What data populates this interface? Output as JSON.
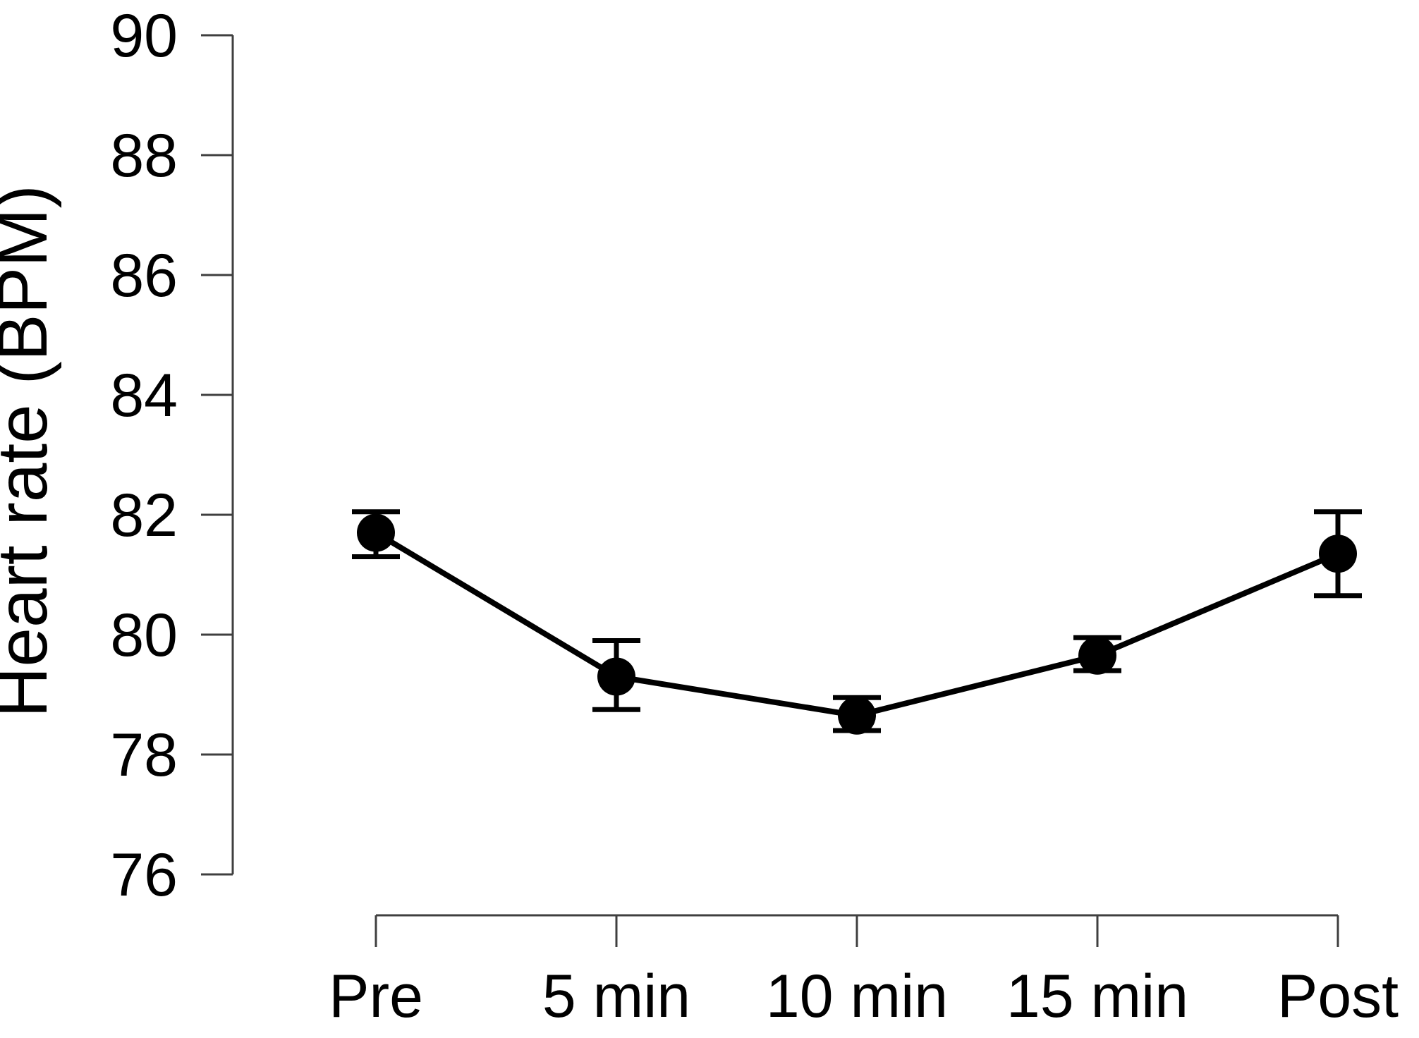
{
  "chart_data": {
    "type": "line",
    "title": "",
    "xlabel": "",
    "ylabel": "Heart rate (BPM)",
    "categories": [
      "Pre",
      "5 min",
      "10 min",
      "15 min",
      "Post"
    ],
    "series": [
      {
        "name": "Heart rate",
        "values": [
          81.7,
          79.3,
          78.65,
          79.65,
          81.35
        ],
        "error_upper": [
          82.05,
          79.9,
          78.95,
          79.95,
          82.05
        ],
        "error_lower": [
          81.3,
          78.75,
          78.4,
          79.4,
          80.65
        ]
      }
    ],
    "ylim": [
      76,
      90
    ],
    "yticks": [
      76,
      78,
      80,
      82,
      84,
      86,
      88,
      90
    ],
    "grid": false,
    "legend": "none",
    "marker": "filled-circle",
    "line_color": "#000000",
    "marker_color": "#000000",
    "error_bar_color": "#000000",
    "axis_color": "#3f3f3f",
    "text_color": "#000000",
    "background": "#ffffff"
  }
}
